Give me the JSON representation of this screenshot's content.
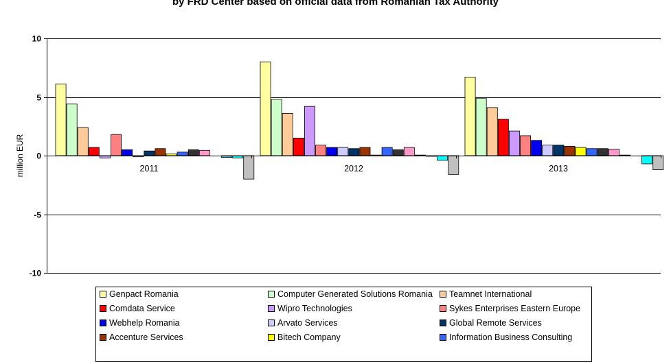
{
  "chart_data": {
    "type": "bar",
    "title": "by FRD Center based on official data from Romanian Tax Authority",
    "ylabel": "million EUR",
    "xlabel": "",
    "ylim": [
      -10,
      10
    ],
    "yticks": [
      10,
      5,
      0,
      -5,
      -10
    ],
    "categories": [
      "2011",
      "2012",
      "2013"
    ],
    "grid": true,
    "legend_position": "bottom",
    "series": [
      {
        "name": "Genpact Romania",
        "color": "#ffffa0",
        "values": [
          6.1,
          8.0,
          6.7
        ]
      },
      {
        "name": "Computer Generated Solutions Romania",
        "color": "#ccffcc",
        "values": [
          4.4,
          4.8,
          4.9
        ]
      },
      {
        "name": "Teamnet International",
        "color": "#ffcc99",
        "values": [
          2.4,
          3.6,
          4.1
        ]
      },
      {
        "name": "Comdata Service",
        "color": "#ff0000",
        "values": [
          0.7,
          1.5,
          3.1
        ]
      },
      {
        "name": "Wipro Technologies",
        "color": "#cc99ff",
        "values": [
          -0.2,
          4.2,
          2.1
        ]
      },
      {
        "name": "Sykes Enterprises Eastern Europe",
        "color": "#ff8080",
        "values": [
          1.8,
          0.9,
          1.7
        ]
      },
      {
        "name": "Webhelp Romania",
        "color": "#0000ee",
        "values": [
          0.5,
          0.7,
          1.3
        ]
      },
      {
        "name": "Arvato Services",
        "color": "#ccccff",
        "values": [
          -0.1,
          0.7,
          0.9
        ]
      },
      {
        "name": "Global Remote Services",
        "color": "#003366",
        "values": [
          0.4,
          0.6,
          0.9
        ]
      },
      {
        "name": "Accenture Services",
        "color": "#993300",
        "values": [
          0.6,
          0.7,
          0.8
        ]
      },
      {
        "name": "Bitech Company",
        "color": "#ffff00",
        "values": [
          0.15,
          0.05,
          0.7
        ]
      },
      {
        "name": "Information Business Consulting",
        "color": "#3366ff",
        "values": [
          0.3,
          0.7,
          0.6
        ]
      },
      {
        "name": "",
        "color": "#333333",
        "values": [
          0.5,
          0.5,
          0.6
        ]
      },
      {
        "name": "",
        "color": "#ff99cc",
        "values": [
          0.45,
          0.7,
          0.55
        ]
      },
      {
        "name": "",
        "color": "#800000",
        "values": [
          0.0,
          0.05,
          0.05
        ]
      },
      {
        "name": "",
        "color": "#33ccff",
        "values": [
          -0.15,
          -0.05,
          0.0
        ]
      },
      {
        "name": "",
        "color": "#00ffff",
        "values": [
          -0.2,
          -0.4,
          -0.7
        ]
      },
      {
        "name": "",
        "color": "#c0c0c0",
        "values": [
          -2.0,
          -1.6,
          -1.2
        ]
      }
    ]
  }
}
